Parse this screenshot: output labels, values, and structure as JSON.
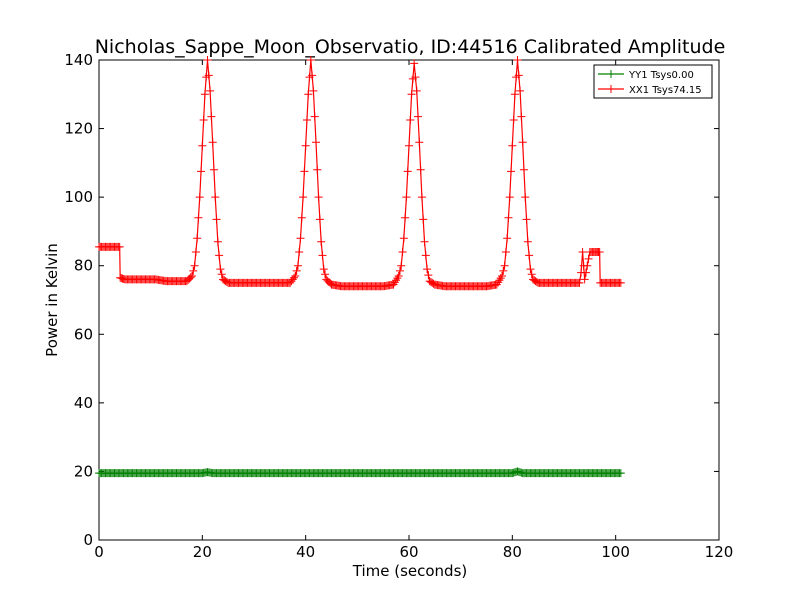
{
  "chart_data": {
    "type": "line",
    "title": "Nicholas_Sappe_Moon_Observatio, ID:44516 Calibrated Amplitude",
    "xlabel": "Time (seconds)",
    "ylabel": "Power in Kelvin",
    "xlim": [
      0,
      120
    ],
    "ylim": [
      0,
      140
    ],
    "xticks": [
      0,
      20,
      40,
      60,
      80,
      100,
      120
    ],
    "yticks": [
      0,
      20,
      40,
      60,
      80,
      100,
      120,
      140
    ],
    "grid": false,
    "legend_position": "top-right",
    "series": [
      {
        "name": "YY1 Tsys0.00",
        "color": "#008000",
        "marker": "plus",
        "x": [
          0,
          1,
          2,
          3,
          4,
          5,
          6,
          8,
          10,
          12,
          14,
          16,
          18,
          20,
          21,
          22,
          24,
          26,
          28,
          30,
          35,
          40,
          45,
          50,
          55,
          60,
          65,
          70,
          75,
          80,
          81,
          82,
          85,
          90,
          93,
          95,
          97,
          99,
          101
        ],
        "y": [
          19.5,
          19.5,
          19.5,
          19.5,
          19.5,
          19.5,
          19.5,
          19.5,
          19.5,
          19.5,
          19.5,
          19.5,
          19.5,
          19.5,
          19.8,
          19.5,
          19.5,
          19.5,
          19.5,
          19.5,
          19.5,
          19.5,
          19.5,
          19.5,
          19.5,
          19.5,
          19.5,
          19.5,
          19.5,
          19.5,
          20.0,
          19.5,
          19.5,
          19.5,
          19.5,
          19.5,
          19.5,
          19.5,
          19.5
        ]
      },
      {
        "name": "XX1 Tsys74.15",
        "color": "#ff0000",
        "marker": "plus",
        "x": [
          0,
          1,
          2,
          3,
          4,
          4.1,
          5,
          7,
          9,
          11,
          13,
          15,
          17,
          18,
          18.5,
          19,
          19.5,
          20,
          20.5,
          21,
          21.5,
          22,
          22.5,
          23,
          23.5,
          24,
          25,
          27,
          29,
          31,
          33,
          35,
          37,
          38,
          38.5,
          39,
          39.5,
          40,
          40.5,
          41,
          41.5,
          42,
          42.5,
          43,
          43.5,
          44,
          45,
          47,
          49,
          51,
          53,
          55,
          57,
          58,
          58.5,
          59,
          59.5,
          60,
          60.5,
          61,
          61.5,
          62,
          62.5,
          63,
          63.5,
          64,
          65,
          67,
          69,
          71,
          73,
          75,
          77,
          78,
          78.5,
          79,
          79.5,
          80,
          80.5,
          81,
          81.5,
          82,
          82.5,
          83,
          83.5,
          84,
          85,
          87,
          89,
          91,
          92.5,
          93,
          93.3,
          93.6,
          94,
          95,
          96,
          96.9,
          97,
          98,
          99,
          100,
          101
        ],
        "y": [
          85.5,
          85.5,
          85.5,
          85.5,
          85.5,
          76.5,
          76,
          76,
          76,
          76,
          75.5,
          75.5,
          75.5,
          77,
          80,
          88,
          100,
          115,
          130,
          140,
          131,
          116,
          100,
          87,
          79,
          76,
          75,
          75,
          75,
          75,
          75,
          75,
          75,
          77,
          80,
          88,
          100,
          115,
          130,
          140,
          131,
          116,
          100,
          87,
          79,
          76,
          74.5,
          74,
          74,
          74,
          74,
          74,
          74.5,
          77,
          80,
          88,
          100,
          115,
          130,
          139,
          131,
          116,
          100,
          87,
          79,
          75.5,
          74.5,
          74,
          74,
          74,
          74,
          74,
          74.5,
          77,
          80,
          88,
          100,
          115,
          130,
          140,
          131,
          116,
          100,
          87,
          79,
          76,
          75,
          75,
          75,
          75,
          75,
          75,
          78,
          84,
          76,
          84,
          84,
          84,
          75,
          75,
          75,
          75,
          75
        ]
      }
    ]
  }
}
